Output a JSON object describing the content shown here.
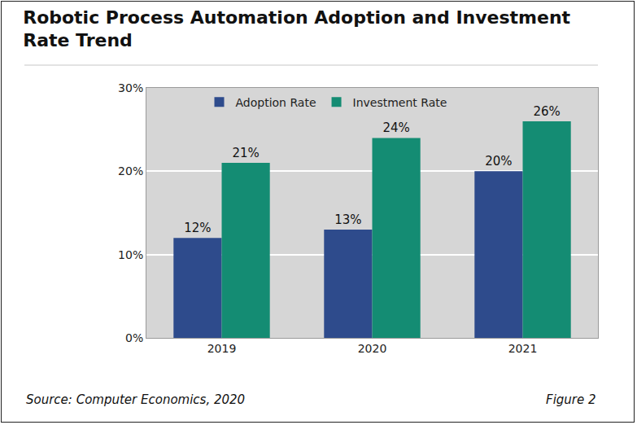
{
  "chart_data": {
    "type": "bar",
    "title": "Robotic Process Automation Adoption and Investment Rate Trend",
    "categories": [
      "2019",
      "2020",
      "2021"
    ],
    "series": [
      {
        "name": "Adoption Rate",
        "color": "#2e4b8c",
        "values": [
          12,
          13,
          20
        ],
        "value_labels": [
          "12%",
          "13%",
          "20%"
        ]
      },
      {
        "name": "Investment Rate",
        "color": "#148c73",
        "values": [
          21,
          24,
          26
        ],
        "value_labels": [
          "21%",
          "24%",
          "26%"
        ]
      }
    ],
    "ylim": [
      0,
      30
    ],
    "yticks": [
      {
        "value": 0,
        "label": "0%"
      },
      {
        "value": 10,
        "label": "10%"
      },
      {
        "value": 20,
        "label": "20%"
      },
      {
        "value": 30,
        "label": "30%"
      }
    ],
    "grid": true,
    "legend": "top",
    "data_labels": true,
    "source": "Source: Computer Economics, 2020",
    "figure_label": "Figure 2"
  }
}
